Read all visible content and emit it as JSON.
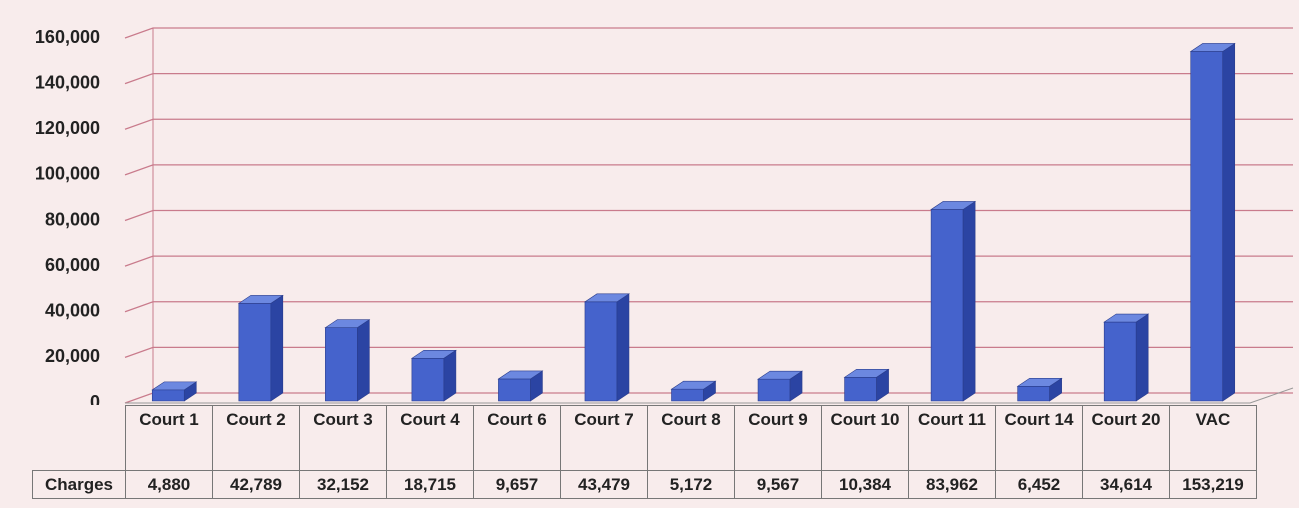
{
  "chart_data": {
    "type": "bar3d",
    "categories": [
      "Court 1",
      "Court 2",
      "Court 3",
      "Court 4",
      "Court 6",
      "Court 7",
      "Court 8",
      "Court 9",
      "Court 10",
      "Court 11",
      "Court 14",
      "Court 20",
      "VAC"
    ],
    "series": [
      {
        "name": "Charges",
        "color": "#4563cc",
        "values": [
          4880,
          42789,
          32152,
          18715,
          9657,
          43479,
          5172,
          9567,
          10384,
          83962,
          6452,
          34614,
          153219
        ],
        "value_labels": [
          "4,880",
          "42,789",
          "32,152",
          "18,715",
          "9,657",
          "43,479",
          "5,172",
          "9,567",
          "10,384",
          "83,962",
          "6,452",
          "34,614",
          "153,219"
        ]
      }
    ],
    "ylim": [
      0,
      160000
    ],
    "yticks": [
      0,
      {
        "value": 20000,
        "label": "20,000"
      },
      {
        "value": 40000,
        "label": "40,000"
      },
      {
        "value": 60000,
        "label": "60,000"
      },
      {
        "value": 80000,
        "label": "80,000"
      },
      {
        "value": 100000,
        "label": "100,000"
      },
      {
        "value": 120000,
        "label": "120,000"
      },
      {
        "value": 140000,
        "label": "140,000"
      },
      {
        "value": 160000,
        "label": "160,000"
      }
    ],
    "grid": true
  }
}
